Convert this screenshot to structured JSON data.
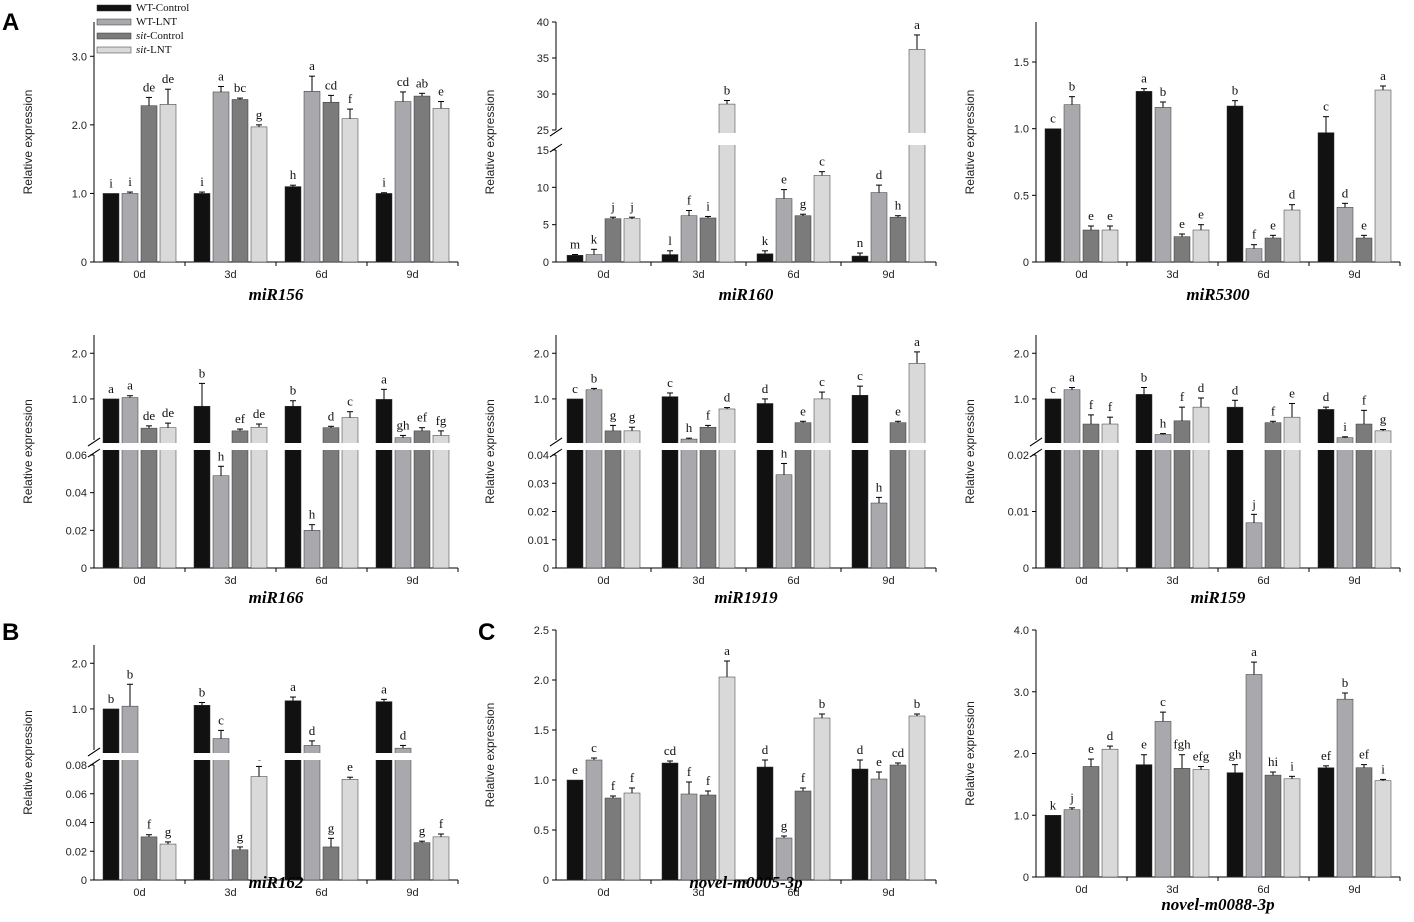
{
  "figure": {
    "panel_labels": [
      "A",
      "B",
      "C"
    ],
    "series_colors": [
      "#111111",
      "#a9a9ad",
      "#7b7b7b",
      "#d9d9d9"
    ],
    "legend": [
      {
        "prefix": "",
        "text": "WT-Control"
      },
      {
        "prefix": "",
        "text": "WT-LNT"
      },
      {
        "prefix": "sit",
        "text": "-Control"
      },
      {
        "prefix": "sit",
        "text": "-LNT"
      }
    ]
  },
  "chart_data": [
    {
      "id": "c-miR156",
      "panel": "A",
      "type": "bar",
      "title": "miR156",
      "ylabel": "Relative expression",
      "xlabel": "",
      "categories": [
        "0d",
        "3d",
        "6d",
        "9d"
      ],
      "ylim": [
        0,
        3.5
      ],
      "yticks": [
        "0",
        "1.0",
        "2.0",
        "3.0"
      ],
      "series": [
        {
          "name": "WT-Control",
          "values": [
            1.0,
            1.0,
            1.1,
            1.0
          ],
          "errors": [
            0,
            0.02,
            0.02,
            0.01
          ],
          "letters": [
            "i",
            "i",
            "h",
            "i"
          ]
        },
        {
          "name": "WT-LNT",
          "values": [
            1.0,
            2.48,
            2.49,
            2.34
          ],
          "errors": [
            0.02,
            0.08,
            0.22,
            0.14
          ],
          "letters": [
            "i",
            "a",
            "a",
            "cd"
          ]
        },
        {
          "name": "sit-Control",
          "values": [
            2.28,
            2.37,
            2.33,
            2.42
          ],
          "errors": [
            0.12,
            0.02,
            0.1,
            0.04
          ],
          "letters": [
            "de",
            "bc",
            "cd",
            "ab"
          ]
        },
        {
          "name": "sit-LNT",
          "values": [
            2.3,
            1.97,
            2.09,
            2.24
          ],
          "errors": [
            0.22,
            0.03,
            0.14,
            0.1
          ],
          "letters": [
            "de",
            "g",
            "f",
            "e"
          ]
        }
      ]
    },
    {
      "id": "c-miR160",
      "panel": "A",
      "type": "bar",
      "title": "miR160",
      "ylabel": "Relative expression",
      "xlabel": "",
      "categories": [
        "0d",
        "3d",
        "6d",
        "9d"
      ],
      "broken_axis": {
        "lower": [
          0,
          15
        ],
        "upper": [
          25,
          40
        ]
      },
      "yticks_lower": [
        "0",
        "5",
        "10",
        "15"
      ],
      "yticks_upper": [
        "25",
        "30",
        "35",
        "40"
      ],
      "series": [
        {
          "name": "WT-Control",
          "values": [
            0.9,
            1.0,
            1.1,
            0.8
          ],
          "errors": [
            0.1,
            0.5,
            0.4,
            0.4
          ],
          "letters": [
            "m",
            "l",
            "k",
            "n"
          ]
        },
        {
          "name": "WT-LNT",
          "values": [
            1.0,
            6.2,
            8.5,
            9.3
          ],
          "errors": [
            0.7,
            0.7,
            1.2,
            1.0
          ],
          "letters": [
            "k",
            "f",
            "e",
            "d"
          ]
        },
        {
          "name": "sit-Control",
          "values": [
            5.8,
            5.9,
            6.2,
            6.0
          ],
          "errors": [
            0.2,
            0.2,
            0.2,
            0.2
          ],
          "letters": [
            "j",
            "i",
            "g",
            "h"
          ]
        },
        {
          "name": "sit-LNT",
          "values": [
            5.8,
            28.6,
            11.6,
            36.2
          ],
          "errors": [
            0.2,
            0.5,
            0.5,
            2.0
          ],
          "letters": [
            "j",
            "b",
            "c",
            "a"
          ]
        }
      ]
    },
    {
      "id": "c-miR5300",
      "panel": "A",
      "type": "bar",
      "title": "miR5300",
      "ylabel": "Relative expression",
      "xlabel": "",
      "categories": [
        "0d",
        "3d",
        "6d",
        "9d"
      ],
      "ylim": [
        0,
        1.8
      ],
      "yticks": [
        "0",
        "0.5",
        "1.0",
        "1.5"
      ],
      "series": [
        {
          "name": "WT-Control",
          "values": [
            1.0,
            1.28,
            1.17,
            0.97
          ],
          "errors": [
            0,
            0.02,
            0.04,
            0.12
          ],
          "letters": [
            "c",
            "a",
            "b",
            "c"
          ]
        },
        {
          "name": "WT-LNT",
          "values": [
            1.18,
            1.16,
            0.1,
            0.41
          ],
          "errors": [
            0.06,
            0.04,
            0.03,
            0.03
          ],
          "letters": [
            "b",
            "b",
            "f",
            "d"
          ]
        },
        {
          "name": "sit-Control",
          "values": [
            0.24,
            0.19,
            0.18,
            0.18
          ],
          "errors": [
            0.03,
            0.02,
            0.02,
            0.02
          ],
          "letters": [
            "e",
            "e",
            "e",
            "e"
          ]
        },
        {
          "name": "sit-LNT",
          "values": [
            0.24,
            0.24,
            0.39,
            1.29
          ],
          "errors": [
            0.03,
            0.04,
            0.04,
            0.03
          ],
          "letters": [
            "e",
            "e",
            "d",
            "a"
          ]
        }
      ]
    },
    {
      "id": "c-miR166",
      "panel": "A",
      "type": "bar",
      "title": "miR166",
      "ylabel": "Relative expression",
      "xlabel": "",
      "categories": [
        "0d",
        "3d",
        "6d",
        "9d"
      ],
      "broken_axis": {
        "lower": [
          0,
          0.06
        ],
        "upper": [
          0.1,
          2.4
        ]
      },
      "yticks_lower": [
        "0",
        "0.02",
        "0.04",
        "0.06"
      ],
      "yticks_upper": [
        "1.0",
        "2.0"
      ],
      "series": [
        {
          "name": "WT-Control",
          "values": [
            1.0,
            0.84,
            0.84,
            0.99
          ],
          "errors": [
            0,
            0.5,
            0.12,
            0.22
          ],
          "letters": [
            "a",
            "b",
            "b",
            "a"
          ]
        },
        {
          "name": "WT-LNT",
          "values": [
            1.03,
            0.049,
            0.02,
            0.15
          ],
          "errors": [
            0.04,
            0.005,
            0.003,
            0.05
          ],
          "letters": [
            "a",
            "h",
            "h",
            "gh"
          ]
        },
        {
          "name": "sit-Control",
          "values": [
            0.36,
            0.3,
            0.37,
            0.3
          ],
          "errors": [
            0.05,
            0.04,
            0.03,
            0.07
          ],
          "letters": [
            "de",
            "ef",
            "d",
            "ef"
          ]
        },
        {
          "name": "sit-LNT",
          "values": [
            0.37,
            0.38,
            0.59,
            0.2
          ],
          "errors": [
            0.1,
            0.07,
            0.13,
            0.1
          ],
          "letters": [
            "de",
            "de",
            "c",
            "fg"
          ]
        }
      ]
    },
    {
      "id": "c-miR1919",
      "panel": "A",
      "type": "bar",
      "title": "miR1919",
      "ylabel": "Relative expression",
      "xlabel": "",
      "categories": [
        "0d",
        "3d",
        "6d",
        "9d"
      ],
      "broken_axis": {
        "lower": [
          0,
          0.04
        ],
        "upper": [
          0.1,
          2.4
        ]
      },
      "yticks_lower": [
        "0",
        "0.01",
        "0.02",
        "0.03",
        "0.04"
      ],
      "yticks_upper": [
        "1.0",
        "2.0"
      ],
      "series": [
        {
          "name": "WT-Control",
          "values": [
            1.0,
            1.05,
            0.9,
            1.08
          ],
          "errors": [
            0,
            0.08,
            0.1,
            0.2
          ],
          "letters": [
            "c",
            "c",
            "d",
            "c"
          ]
        },
        {
          "name": "WT-LNT",
          "values": [
            1.2,
            0.12,
            0.033,
            0.023
          ],
          "errors": [
            0.03,
            0.02,
            0.004,
            0.002
          ],
          "letters": [
            "b",
            "h",
            "h",
            "h"
          ]
        },
        {
          "name": "sit-Control",
          "values": [
            0.3,
            0.38,
            0.48,
            0.48
          ],
          "errors": [
            0.12,
            0.04,
            0.03,
            0.03
          ],
          "letters": [
            "g",
            "f",
            "e",
            "e"
          ]
        },
        {
          "name": "sit-LNT",
          "values": [
            0.3,
            0.78,
            1.0,
            1.78
          ],
          "errors": [
            0.08,
            0.03,
            0.15,
            0.25
          ],
          "letters": [
            "g",
            "d",
            "c",
            "a"
          ]
        }
      ]
    },
    {
      "id": "c-miR159",
      "panel": "A",
      "type": "bar",
      "title": "miR159",
      "ylabel": "Relative expression",
      "xlabel": "",
      "categories": [
        "0d",
        "3d",
        "6d",
        "9d"
      ],
      "broken_axis": {
        "lower": [
          0,
          0.02
        ],
        "upper": [
          0.1,
          2.4
        ]
      },
      "yticks_lower": [
        "0",
        "0.01",
        "0.02"
      ],
      "yticks_upper": [
        "1.0",
        "2.0"
      ],
      "series": [
        {
          "name": "WT-Control",
          "values": [
            1.0,
            1.1,
            0.82,
            0.77
          ],
          "errors": [
            0,
            0.15,
            0.15,
            0.05
          ],
          "letters": [
            "c",
            "b",
            "d",
            "d"
          ]
        },
        {
          "name": "WT-LNT",
          "values": [
            1.2,
            0.22,
            0.008,
            0.15
          ],
          "errors": [
            0.05,
            0.02,
            0.0015,
            0.02
          ],
          "letters": [
            "a",
            "h",
            "j",
            "i"
          ]
        },
        {
          "name": "sit-Control",
          "values": [
            0.45,
            0.52,
            0.48,
            0.45
          ],
          "errors": [
            0.2,
            0.3,
            0.03,
            0.3
          ],
          "letters": [
            "f",
            "f",
            "f",
            "f"
          ]
        },
        {
          "name": "sit-LNT",
          "values": [
            0.45,
            0.82,
            0.6,
            0.3
          ],
          "errors": [
            0.15,
            0.2,
            0.3,
            0.03
          ],
          "letters": [
            "f",
            "d",
            "e",
            "g"
          ]
        }
      ]
    },
    {
      "id": "c-miR162",
      "panel": "B",
      "type": "bar",
      "title": "miR162",
      "ylabel": "Relative expression",
      "xlabel": "",
      "categories": [
        "0d",
        "3d",
        "6d",
        "9d"
      ],
      "broken_axis": {
        "lower": [
          0,
          0.08
        ],
        "upper": [
          0.1,
          2.4
        ]
      },
      "yticks_lower": [
        "0",
        "0.02",
        "0.04",
        "0.06",
        "0.08"
      ],
      "yticks_upper": [
        "1.0",
        "2.0"
      ],
      "series": [
        {
          "name": "WT-Control",
          "values": [
            1.0,
            1.08,
            1.18,
            1.16
          ],
          "errors": [
            0,
            0.06,
            0.08,
            0.05
          ],
          "letters": [
            "b",
            "b",
            "a",
            "a"
          ]
        },
        {
          "name": "WT-LNT",
          "values": [
            1.06,
            0.35,
            0.2,
            0.14
          ],
          "errors": [
            0.48,
            0.18,
            0.1,
            0.06
          ],
          "letters": [
            "b",
            "c",
            "d",
            "d"
          ]
        },
        {
          "name": "sit-Control",
          "values": [
            0.03,
            0.021,
            0.023,
            0.026
          ],
          "errors": [
            0.0015,
            0.002,
            0.006,
            0.001
          ],
          "letters": [
            "f",
            "g",
            "g",
            "g"
          ]
        },
        {
          "name": "sit-LNT",
          "values": [
            0.025,
            0.072,
            0.07,
            0.03
          ],
          "errors": [
            0.0015,
            0.007,
            0.0015,
            0.002
          ],
          "letters": [
            "g",
            "e",
            "e",
            "f"
          ]
        }
      ]
    },
    {
      "id": "c-m0005",
      "panel": "C",
      "type": "bar",
      "title": "novel-m0005-3p",
      "ylabel": "Relative expression",
      "xlabel": "",
      "categories": [
        "0d",
        "3d",
        "6d",
        "9d"
      ],
      "ylim": [
        0,
        2.5
      ],
      "yticks": [
        "0",
        "0.5",
        "1.0",
        "1.5",
        "2.0",
        "2.5"
      ],
      "series": [
        {
          "name": "WT-Control",
          "values": [
            1.0,
            1.17,
            1.13,
            1.11
          ],
          "errors": [
            0,
            0.02,
            0.07,
            0.09
          ],
          "letters": [
            "e",
            "cd",
            "d",
            "d"
          ]
        },
        {
          "name": "WT-LNT",
          "values": [
            1.2,
            0.86,
            0.42,
            1.01
          ],
          "errors": [
            0.02,
            0.12,
            0.02,
            0.07
          ],
          "letters": [
            "c",
            "f",
            "g",
            "e"
          ]
        },
        {
          "name": "sit-Control",
          "values": [
            0.82,
            0.85,
            0.89,
            1.15
          ],
          "errors": [
            0.02,
            0.04,
            0.03,
            0.02
          ],
          "letters": [
            "f",
            "f",
            "f",
            "cd"
          ]
        },
        {
          "name": "sit-LNT",
          "values": [
            0.87,
            2.03,
            1.62,
            1.64
          ],
          "errors": [
            0.05,
            0.16,
            0.04,
            0.02
          ],
          "letters": [
            "f",
            "a",
            "b",
            "b"
          ]
        }
      ]
    },
    {
      "id": "c-m0088",
      "panel": "C",
      "type": "bar",
      "title": "novel-m0088-3p",
      "ylabel": "Relative expression",
      "xlabel": "",
      "categories": [
        "0d",
        "3d",
        "6d",
        "9d"
      ],
      "ylim": [
        0,
        4.0
      ],
      "yticks": [
        "0",
        "1.0",
        "2.0",
        "3.0",
        "4.0"
      ],
      "series": [
        {
          "name": "WT-Control",
          "values": [
            1.0,
            1.82,
            1.69,
            1.77
          ],
          "errors": [
            0,
            0.16,
            0.13,
            0.03
          ],
          "letters": [
            "k",
            "e",
            "gh",
            "ef"
          ]
        },
        {
          "name": "WT-LNT",
          "values": [
            1.09,
            2.52,
            3.28,
            2.88
          ],
          "errors": [
            0.03,
            0.15,
            0.2,
            0.1
          ],
          "letters": [
            "j",
            "c",
            "a",
            "b"
          ]
        },
        {
          "name": "sit-Control",
          "values": [
            1.79,
            1.76,
            1.65,
            1.77
          ],
          "errors": [
            0.12,
            0.22,
            0.05,
            0.05
          ],
          "letters": [
            "e",
            "fgh",
            "hi",
            "ef"
          ]
        },
        {
          "name": "sit-LNT",
          "values": [
            2.07,
            1.74,
            1.59,
            1.56
          ],
          "errors": [
            0.05,
            0.05,
            0.04,
            0.02
          ],
          "letters": [
            "d",
            "efg",
            "i",
            "i"
          ]
        }
      ]
    }
  ]
}
